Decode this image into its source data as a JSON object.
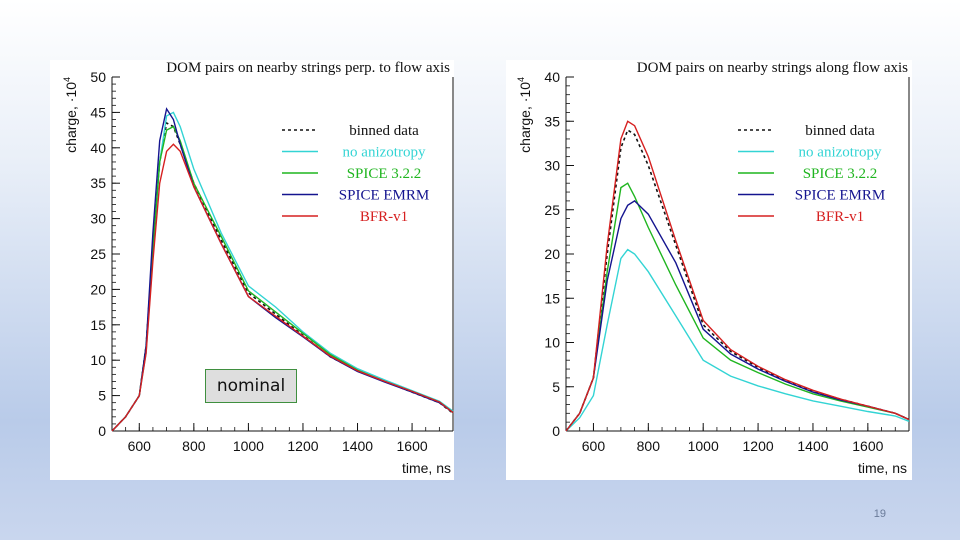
{
  "slide": {
    "page_number": "19"
  },
  "annotation": {
    "label": "nominal"
  },
  "chart_data": [
    {
      "type": "line",
      "title": "DOM pairs on nearby strings perp. to flow axis",
      "xlabel": "time, ns",
      "ylabel": "charge, ·10",
      "ylabel_exponent": "4",
      "xlim": [
        500,
        1750
      ],
      "ylim": [
        0,
        50
      ],
      "xticks": [
        600,
        800,
        1000,
        1200,
        1400,
        1600
      ],
      "yticks": [
        0,
        5,
        10,
        15,
        20,
        25,
        30,
        35,
        40,
        45,
        50
      ],
      "legend_position": "top-right",
      "series": [
        {
          "name": "binned data",
          "color": "#111111",
          "dash": "3,3",
          "x": [
            500,
            550,
            600,
            625,
            650,
            675,
            700,
            725,
            750,
            800,
            900,
            1000,
            1100,
            1200,
            1300,
            1400,
            1500,
            1600,
            1700,
            1750
          ],
          "y": [
            0,
            2,
            5,
            12,
            26,
            38,
            43.5,
            43,
            40.5,
            35,
            27,
            19.5,
            16.5,
            13.5,
            10.5,
            8.5,
            7,
            5.5,
            4,
            2.5
          ]
        },
        {
          "name": "no anizotropy",
          "color": "#33d4d4",
          "dash": "",
          "x": [
            500,
            550,
            600,
            625,
            650,
            675,
            700,
            725,
            750,
            800,
            900,
            1000,
            1100,
            1200,
            1300,
            1400,
            1500,
            1600,
            1700,
            1750
          ],
          "y": [
            0,
            2,
            5,
            11,
            25,
            38,
            44.5,
            45,
            43,
            37,
            28,
            20.5,
            17.5,
            14,
            11,
            8.8,
            7.2,
            5.7,
            4.2,
            2.8
          ]
        },
        {
          "name": "SPICE 3.2.2",
          "color": "#1fb51f",
          "dash": "",
          "x": [
            500,
            550,
            600,
            625,
            650,
            675,
            700,
            725,
            750,
            800,
            900,
            1000,
            1100,
            1200,
            1300,
            1400,
            1500,
            1600,
            1700,
            1750
          ],
          "y": [
            0,
            2,
            5,
            12,
            26,
            38,
            42.5,
            43,
            41,
            35,
            27.5,
            19.8,
            16.8,
            13.8,
            10.8,
            8.6,
            7,
            5.6,
            4.1,
            2.6
          ]
        },
        {
          "name": "SPICE EMRM",
          "color": "#14148f",
          "dash": "",
          "x": [
            500,
            550,
            600,
            625,
            650,
            675,
            700,
            725,
            750,
            800,
            900,
            1000,
            1100,
            1200,
            1300,
            1400,
            1500,
            1600,
            1700,
            1750
          ],
          "y": [
            0,
            2,
            5,
            12,
            28,
            41,
            45.5,
            44,
            40.5,
            34.5,
            26.5,
            19,
            16,
            13.3,
            10.5,
            8.4,
            6.9,
            5.5,
            4,
            2.6
          ]
        },
        {
          "name": "BFR-v1",
          "color": "#d62020",
          "dash": "",
          "x": [
            500,
            550,
            600,
            625,
            650,
            675,
            700,
            725,
            750,
            800,
            900,
            1000,
            1100,
            1200,
            1300,
            1400,
            1500,
            1600,
            1700,
            1750
          ],
          "y": [
            0,
            2,
            5,
            11,
            24,
            35,
            39.5,
            40.5,
            39.5,
            34.5,
            26.5,
            19,
            16.2,
            13.4,
            10.6,
            8.5,
            7,
            5.6,
            4.1,
            2.6
          ]
        }
      ]
    },
    {
      "type": "line",
      "title": "DOM pairs on nearby strings along flow axis",
      "xlabel": "time, ns",
      "ylabel": "charge, ·10",
      "ylabel_exponent": "4",
      "xlim": [
        500,
        1750
      ],
      "ylim": [
        0,
        40
      ],
      "xticks": [
        600,
        800,
        1000,
        1200,
        1400,
        1600
      ],
      "yticks": [
        0,
        5,
        10,
        15,
        20,
        25,
        30,
        35,
        40
      ],
      "legend_position": "top-right",
      "series": [
        {
          "name": "binned data",
          "color": "#111111",
          "dash": "3,3",
          "x": [
            500,
            550,
            600,
            650,
            700,
            725,
            750,
            800,
            900,
            1000,
            1100,
            1200,
            1300,
            1400,
            1500,
            1600,
            1700,
            1750
          ],
          "y": [
            0,
            2,
            6,
            20,
            32,
            34,
            33.5,
            30,
            21,
            12,
            9,
            7.2,
            5.7,
            4.5,
            3.6,
            2.8,
            2,
            1.3
          ]
        },
        {
          "name": "no anizotropy",
          "color": "#33d4d4",
          "dash": "",
          "x": [
            500,
            550,
            600,
            650,
            700,
            725,
            750,
            800,
            900,
            1000,
            1100,
            1200,
            1300,
            1400,
            1500,
            1600,
            1700,
            1750
          ],
          "y": [
            0,
            1.5,
            4,
            12,
            19.5,
            20.5,
            20,
            18,
            13,
            8,
            6.2,
            5.1,
            4.2,
            3.4,
            2.8,
            2.2,
            1.7,
            1.1
          ]
        },
        {
          "name": "SPICE 3.2.2",
          "color": "#1fb51f",
          "dash": "",
          "x": [
            500,
            550,
            600,
            650,
            700,
            725,
            750,
            800,
            900,
            1000,
            1100,
            1200,
            1300,
            1400,
            1500,
            1600,
            1700,
            1750
          ],
          "y": [
            0,
            2,
            6,
            18,
            27.5,
            28,
            26.5,
            23,
            16.5,
            10.5,
            8,
            6.6,
            5.3,
            4.2,
            3.4,
            2.7,
            2,
            1.3
          ]
        },
        {
          "name": "SPICE EMRM",
          "color": "#14148f",
          "dash": "",
          "x": [
            500,
            550,
            600,
            650,
            700,
            725,
            750,
            800,
            900,
            1000,
            1100,
            1200,
            1300,
            1400,
            1500,
            1600,
            1700,
            1750
          ],
          "y": [
            0,
            2,
            6,
            17,
            24,
            25.5,
            26,
            24.5,
            19,
            11.5,
            8.7,
            7,
            5.6,
            4.4,
            3.5,
            2.8,
            2,
            1.3
          ]
        },
        {
          "name": "BFR-v1",
          "color": "#d62020",
          "dash": "",
          "x": [
            500,
            550,
            600,
            650,
            700,
            725,
            750,
            800,
            900,
            1000,
            1100,
            1200,
            1300,
            1400,
            1500,
            1600,
            1700,
            1750
          ],
          "y": [
            0,
            2,
            6,
            21,
            33,
            35,
            34.5,
            31,
            21.5,
            12.5,
            9.2,
            7.3,
            5.8,
            4.6,
            3.6,
            2.8,
            2,
            1.3
          ]
        }
      ]
    }
  ]
}
